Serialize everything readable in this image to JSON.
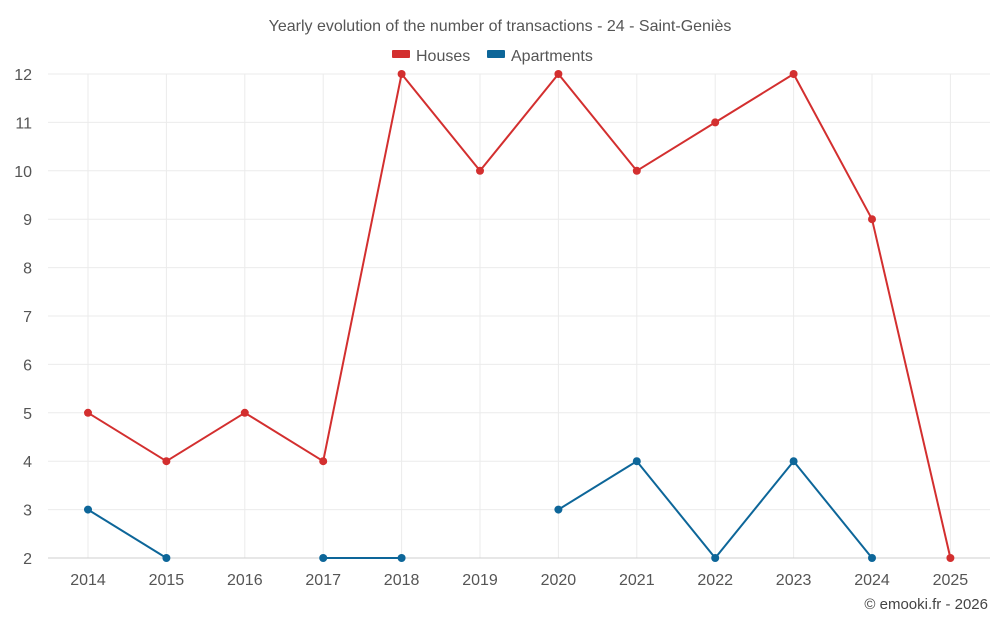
{
  "chart_data": {
    "type": "line",
    "title": "Yearly evolution of the number of transactions - 24 - Saint-Geniès",
    "categories": [
      "2014",
      "2015",
      "2016",
      "2017",
      "2018",
      "2019",
      "2020",
      "2021",
      "2022",
      "2023",
      "2024",
      "2025"
    ],
    "series": [
      {
        "name": "Houses",
        "color": "#d32f2f",
        "values": [
          5,
          4,
          5,
          4,
          12,
          10,
          12,
          10,
          11,
          12,
          9,
          2
        ]
      },
      {
        "name": "Apartments",
        "color": "#0d6699",
        "values": [
          3,
          2,
          null,
          2,
          2,
          null,
          3,
          4,
          2,
          4,
          2,
          null
        ]
      }
    ],
    "ylim": [
      2,
      12
    ],
    "yticks": [
      2,
      3,
      4,
      5,
      6,
      7,
      8,
      9,
      10,
      11,
      12
    ],
    "grid": true,
    "legend_position": "top-center"
  },
  "credit": "© emooki.fr - 2026"
}
